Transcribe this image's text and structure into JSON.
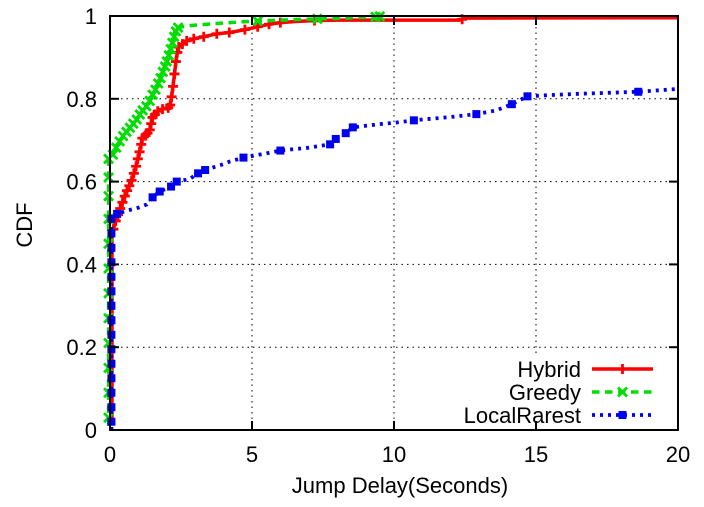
{
  "chart_data": {
    "type": "line",
    "title": "",
    "xlabel": "Jump Delay(Seconds)",
    "ylabel": "CDF",
    "xlim": [
      0,
      20
    ],
    "ylim": [
      0,
      1
    ],
    "xticks": {
      "values": [
        0,
        5,
        10,
        15,
        20
      ],
      "labels": [
        "0",
        "5",
        "10",
        "15",
        "20"
      ]
    },
    "yticks": {
      "values": [
        0,
        0.2,
        0.4,
        0.6,
        0.8,
        1
      ],
      "labels": [
        "0",
        "0.2",
        "0.4",
        "0.6",
        "0.8",
        "1"
      ]
    },
    "grid": "dotted-black-at-major-ticks",
    "legend_position": "inside-bottom-right",
    "axis_color": "#000000",
    "background_color": "#ffffff",
    "series": [
      {
        "name": "Hybrid",
        "color": "#ff0000",
        "line_style": "solid",
        "marker": "plus",
        "points": [
          [
            0.07,
            0.02
          ],
          [
            0.07,
            0.47
          ],
          [
            0.12,
            0.485
          ],
          [
            0.2,
            0.505
          ],
          [
            0.28,
            0.52
          ],
          [
            0.36,
            0.535
          ],
          [
            0.44,
            0.55
          ],
          [
            0.52,
            0.565
          ],
          [
            0.6,
            0.578
          ],
          [
            0.68,
            0.59
          ],
          [
            0.76,
            0.603
          ],
          [
            0.84,
            0.62
          ],
          [
            0.92,
            0.637
          ],
          [
            0.98,
            0.655
          ],
          [
            1.04,
            0.672
          ],
          [
            1.1,
            0.69
          ],
          [
            1.14,
            0.705
          ],
          [
            1.25,
            0.711
          ],
          [
            1.32,
            0.717
          ],
          [
            1.4,
            0.725
          ],
          [
            1.45,
            0.74
          ],
          [
            1.5,
            0.755
          ],
          [
            1.58,
            0.762
          ],
          [
            1.68,
            0.77
          ],
          [
            1.85,
            0.775
          ],
          [
            2.05,
            0.778
          ],
          [
            2.12,
            0.785
          ],
          [
            2.17,
            0.805
          ],
          [
            2.22,
            0.83
          ],
          [
            2.27,
            0.86
          ],
          [
            2.32,
            0.89
          ],
          [
            2.37,
            0.912
          ],
          [
            2.42,
            0.925
          ],
          [
            2.55,
            0.932
          ],
          [
            2.7,
            0.94
          ],
          [
            2.95,
            0.945
          ],
          [
            3.3,
            0.95
          ],
          [
            3.76,
            0.957
          ],
          [
            4.2,
            0.96
          ],
          [
            4.75,
            0.967
          ],
          [
            5.2,
            0.974
          ],
          [
            5.6,
            0.98
          ],
          [
            6.0,
            0.984
          ],
          [
            6.6,
            0.987
          ],
          [
            7.2,
            0.989
          ],
          [
            8.0,
            0.99
          ],
          [
            12.3,
            0.99
          ],
          [
            12.5,
            0.995
          ],
          [
            20,
            0.996
          ]
        ],
        "markers": [
          [
            0.12,
            0.485
          ],
          [
            0.2,
            0.505
          ],
          [
            0.28,
            0.52
          ],
          [
            0.36,
            0.535
          ],
          [
            0.44,
            0.55
          ],
          [
            0.52,
            0.565
          ],
          [
            0.6,
            0.578
          ],
          [
            0.68,
            0.59
          ],
          [
            0.76,
            0.603
          ],
          [
            0.84,
            0.62
          ],
          [
            0.92,
            0.637
          ],
          [
            0.98,
            0.655
          ],
          [
            1.04,
            0.672
          ],
          [
            1.1,
            0.69
          ],
          [
            1.14,
            0.705
          ],
          [
            1.25,
            0.711
          ],
          [
            1.32,
            0.717
          ],
          [
            1.4,
            0.725
          ],
          [
            1.45,
            0.74
          ],
          [
            1.5,
            0.755
          ],
          [
            1.58,
            0.762
          ],
          [
            1.68,
            0.77
          ],
          [
            1.85,
            0.775
          ],
          [
            2.05,
            0.778
          ],
          [
            2.12,
            0.785
          ],
          [
            2.17,
            0.805
          ],
          [
            2.22,
            0.83
          ],
          [
            2.27,
            0.86
          ],
          [
            2.32,
            0.89
          ],
          [
            2.37,
            0.912
          ],
          [
            2.42,
            0.925
          ],
          [
            2.55,
            0.932
          ],
          [
            2.7,
            0.94
          ],
          [
            2.95,
            0.945
          ],
          [
            3.3,
            0.95
          ],
          [
            3.76,
            0.957
          ],
          [
            4.2,
            0.96
          ],
          [
            4.75,
            0.967
          ],
          [
            5.2,
            0.974
          ],
          [
            5.6,
            0.98
          ],
          [
            6.0,
            0.984
          ],
          [
            7.2,
            0.989
          ],
          [
            12.4,
            0.992
          ]
        ]
      },
      {
        "name": "Greedy",
        "color": "#00dd00",
        "line_style": "dashed",
        "marker": "cross",
        "points": [
          [
            -0.05,
            0.01
          ],
          [
            -0.05,
            0.655
          ],
          [
            0.1,
            0.665
          ],
          [
            0.22,
            0.682
          ],
          [
            0.34,
            0.697
          ],
          [
            0.46,
            0.71
          ],
          [
            0.58,
            0.72
          ],
          [
            0.7,
            0.73
          ],
          [
            0.82,
            0.74
          ],
          [
            0.94,
            0.75
          ],
          [
            1.05,
            0.762
          ],
          [
            1.15,
            0.772
          ],
          [
            1.28,
            0.782
          ],
          [
            1.4,
            0.795
          ],
          [
            1.5,
            0.81
          ],
          [
            1.6,
            0.822
          ],
          [
            1.7,
            0.837
          ],
          [
            1.78,
            0.85
          ],
          [
            1.86,
            0.865
          ],
          [
            1.94,
            0.878
          ],
          [
            2.0,
            0.89
          ],
          [
            2.07,
            0.905
          ],
          [
            2.14,
            0.92
          ],
          [
            2.2,
            0.935
          ],
          [
            2.26,
            0.95
          ],
          [
            2.32,
            0.963
          ],
          [
            2.4,
            0.972
          ],
          [
            2.7,
            0.976
          ],
          [
            3.2,
            0.979
          ],
          [
            4.0,
            0.983
          ],
          [
            4.7,
            0.986
          ],
          [
            5.2,
            0.988
          ],
          [
            6.0,
            0.99
          ],
          [
            7.3,
            0.993
          ],
          [
            8.3,
            0.995
          ],
          [
            9.35,
            0.998
          ],
          [
            9.5,
            0.999
          ]
        ],
        "markers": [
          [
            -0.05,
            0.03
          ],
          [
            -0.05,
            0.09
          ],
          [
            -0.05,
            0.15
          ],
          [
            -0.05,
            0.21
          ],
          [
            -0.05,
            0.27
          ],
          [
            -0.05,
            0.33
          ],
          [
            -0.05,
            0.39
          ],
          [
            -0.05,
            0.45
          ],
          [
            -0.05,
            0.51
          ],
          [
            -0.05,
            0.565
          ],
          [
            -0.05,
            0.61
          ],
          [
            -0.05,
            0.655
          ],
          [
            0.1,
            0.665
          ],
          [
            0.22,
            0.682
          ],
          [
            0.34,
            0.697
          ],
          [
            0.46,
            0.71
          ],
          [
            0.58,
            0.72
          ],
          [
            0.7,
            0.73
          ],
          [
            0.82,
            0.74
          ],
          [
            0.94,
            0.75
          ],
          [
            1.05,
            0.762
          ],
          [
            1.15,
            0.772
          ],
          [
            1.28,
            0.782
          ],
          [
            1.4,
            0.795
          ],
          [
            1.5,
            0.81
          ],
          [
            1.6,
            0.822
          ],
          [
            1.7,
            0.837
          ],
          [
            1.78,
            0.85
          ],
          [
            1.86,
            0.865
          ],
          [
            1.94,
            0.878
          ],
          [
            2.0,
            0.89
          ],
          [
            2.07,
            0.905
          ],
          [
            2.14,
            0.92
          ],
          [
            2.2,
            0.935
          ],
          [
            2.26,
            0.95
          ],
          [
            2.32,
            0.963
          ],
          [
            2.4,
            0.972
          ],
          [
            5.2,
            0.988
          ],
          [
            7.3,
            0.993
          ],
          [
            9.35,
            0.998
          ],
          [
            9.5,
            0.999
          ]
        ]
      },
      {
        "name": "LocalRarest",
        "color": "#0000ee",
        "line_style": "dotted",
        "marker": "square",
        "points": [
          [
            0.05,
            0.0
          ],
          [
            0.05,
            0.515
          ],
          [
            0.25,
            0.522
          ],
          [
            0.6,
            0.53
          ],
          [
            1.0,
            0.537
          ],
          [
            1.3,
            0.545
          ],
          [
            1.5,
            0.562
          ],
          [
            1.75,
            0.576
          ],
          [
            2.15,
            0.588
          ],
          [
            2.35,
            0.6
          ],
          [
            2.8,
            0.606
          ],
          [
            3.1,
            0.62
          ],
          [
            3.35,
            0.628
          ],
          [
            3.9,
            0.64
          ],
          [
            4.2,
            0.648
          ],
          [
            4.7,
            0.658
          ],
          [
            5.5,
            0.668
          ],
          [
            6.0,
            0.675
          ],
          [
            7.0,
            0.682
          ],
          [
            7.75,
            0.69
          ],
          [
            7.95,
            0.703
          ],
          [
            8.3,
            0.717
          ],
          [
            8.55,
            0.731
          ],
          [
            9.5,
            0.739
          ],
          [
            10.0,
            0.742
          ],
          [
            10.7,
            0.748
          ],
          [
            12.0,
            0.756
          ],
          [
            12.9,
            0.763
          ],
          [
            13.6,
            0.772
          ],
          [
            14.15,
            0.787
          ],
          [
            14.7,
            0.806
          ],
          [
            15.5,
            0.809
          ],
          [
            16.5,
            0.812
          ],
          [
            18.6,
            0.817
          ],
          [
            20,
            0.824
          ]
        ],
        "markers": [
          [
            0.05,
            0.02
          ],
          [
            0.05,
            0.055
          ],
          [
            0.05,
            0.09
          ],
          [
            0.05,
            0.125
          ],
          [
            0.05,
            0.16
          ],
          [
            0.05,
            0.195
          ],
          [
            0.05,
            0.23
          ],
          [
            0.05,
            0.265
          ],
          [
            0.05,
            0.3
          ],
          [
            0.05,
            0.335
          ],
          [
            0.05,
            0.37
          ],
          [
            0.05,
            0.405
          ],
          [
            0.05,
            0.44
          ],
          [
            0.05,
            0.475
          ],
          [
            0.05,
            0.51
          ],
          [
            0.25,
            0.522
          ],
          [
            1.5,
            0.562
          ],
          [
            1.75,
            0.576
          ],
          [
            2.15,
            0.588
          ],
          [
            2.35,
            0.6
          ],
          [
            3.1,
            0.62
          ],
          [
            3.35,
            0.628
          ],
          [
            4.7,
            0.658
          ],
          [
            6.0,
            0.675
          ],
          [
            7.75,
            0.69
          ],
          [
            7.95,
            0.703
          ],
          [
            8.3,
            0.717
          ],
          [
            8.55,
            0.731
          ],
          [
            10.7,
            0.748
          ],
          [
            12.9,
            0.763
          ],
          [
            14.15,
            0.787
          ],
          [
            14.7,
            0.806
          ],
          [
            18.6,
            0.817
          ]
        ]
      }
    ]
  }
}
